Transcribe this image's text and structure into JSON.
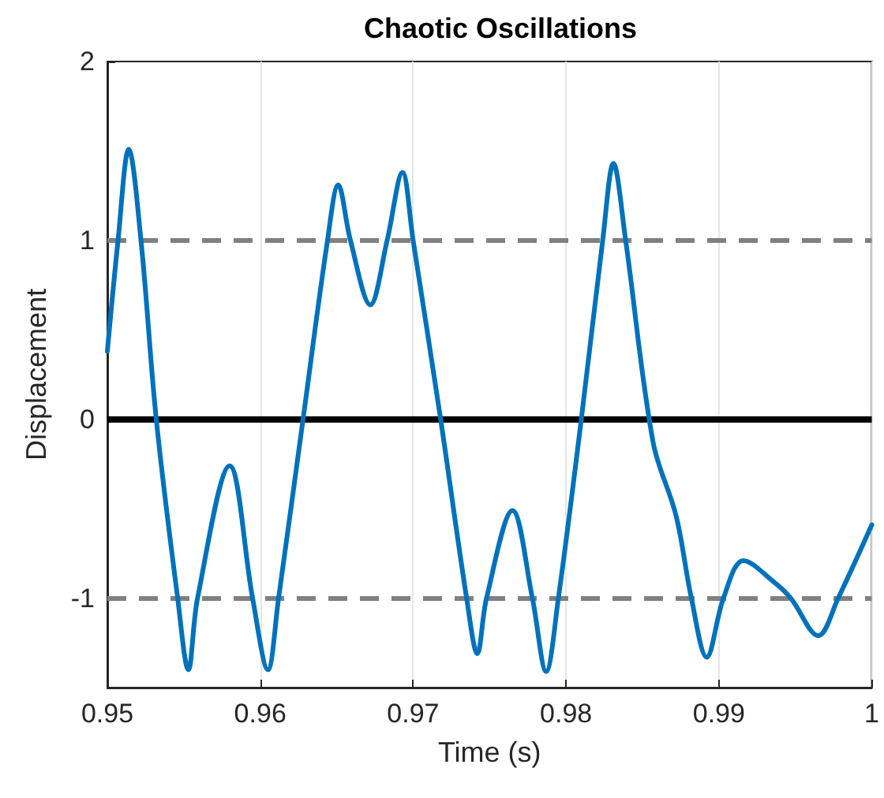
{
  "chart_data": {
    "type": "line",
    "title": "Chaotic Oscillations",
    "xlabel": "Time (s)",
    "ylabel": "Displacement",
    "xlim": [
      0.95,
      1
    ],
    "xticks": [
      0.95,
      0.96,
      0.97,
      0.98,
      0.99,
      1
    ],
    "ylim": [
      -1.5,
      2
    ],
    "yticks": [
      -1,
      0,
      1,
      2
    ],
    "grid": "x",
    "marker": "none",
    "line_style": "solid",
    "series": [
      {
        "color": "#0072bd",
        "x": [
          0.95,
          0.9507,
          0.9514,
          0.9522,
          0.9532,
          0.9546,
          0.9553,
          0.9559,
          0.958,
          0.9595,
          0.9605,
          0.9612,
          0.9628,
          0.9644,
          0.9651,
          0.9659,
          0.9672,
          0.9683,
          0.9693,
          0.97,
          0.9718,
          0.9735,
          0.9742,
          0.9748,
          0.9765,
          0.9778,
          0.9787,
          0.9795,
          0.981,
          0.9824,
          0.9831,
          0.9839,
          0.9857,
          0.9872,
          0.9882,
          0.9892,
          0.9903,
          0.9916,
          0.9936,
          0.9947,
          0.9965,
          0.9978,
          1
        ],
        "values": [
          0.38,
          1,
          1.51,
          1,
          0,
          -1,
          -1.4,
          -1,
          -0.26,
          -1,
          -1.4,
          -1,
          0,
          1,
          1.31,
          1,
          0.64,
          1,
          1.38,
          1,
          0,
          -1,
          -1.31,
          -1,
          -0.51,
          -1,
          -1.41,
          -1,
          0,
          1,
          1.43,
          1,
          -0.13,
          -0.54,
          -1,
          -1.33,
          -1,
          -0.79,
          -0.91,
          -1,
          -1.21,
          -1,
          -0.59
        ]
      }
    ],
    "ref_lines": [
      {
        "axis": "y",
        "value": 0,
        "color": "#000000",
        "line_style": "solid"
      },
      {
        "axis": "y",
        "value": 1,
        "color": "#808080",
        "line_style": "dashed"
      },
      {
        "axis": "y",
        "value": -1,
        "color": "#808080",
        "line_style": "dashed"
      }
    ]
  }
}
